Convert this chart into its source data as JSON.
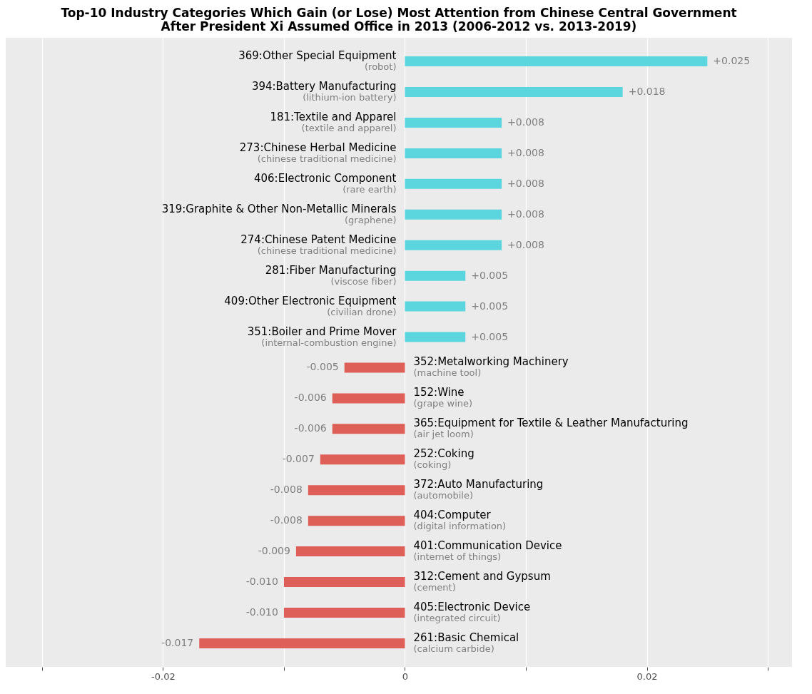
{
  "chart_data": {
    "type": "bar",
    "orientation": "horizontal",
    "title": "Top-10 Industry Categories Which Gain (or Lose) Most Attention from Chinese Central Government\nAfter President Xi Assumed Office in 2013 (2006-2012 vs. 2013-2019)",
    "categories": [
      "369:Other Special Equipment",
      "394:Battery Manufacturing",
      "181:Textile and Apparel",
      "273:Chinese Herbal Medicine",
      "406:Electronic Component",
      "319:Graphite & Other Non-Metallic Minerals",
      "274:Chinese Patent Medicine",
      "281:Fiber Manufacturing",
      "409:Other Electronic Equipment",
      "351:Boiler and Prime Mover",
      "352:Metalworking Machinery",
      "152:Wine",
      "365:Equipment for Textile & Leather Manufacturing",
      "252:Coking",
      "372:Auto Manufacturing",
      "404:Computer",
      "401:Communication Device",
      "312:Cement and Gypsum",
      "405:Electronic Device",
      "261:Basic Chemical"
    ],
    "values": [
      0.025,
      0.018,
      0.008,
      0.008,
      0.008,
      0.008,
      0.008,
      0.005,
      0.005,
      0.005,
      -0.005,
      -0.006,
      -0.006,
      -0.007,
      -0.008,
      -0.008,
      -0.009,
      -0.01,
      -0.01,
      -0.017
    ],
    "value_labels": [
      "+0.025",
      "+0.018",
      "+0.008",
      "+0.008",
      "+0.008",
      "+0.008",
      "+0.008",
      "+0.005",
      "+0.005",
      "+0.005",
      "-0.005",
      "-0.006",
      "-0.006",
      "-0.007",
      "-0.008",
      "-0.008",
      "-0.009",
      "-0.010",
      "-0.010",
      "-0.017"
    ],
    "colors": [
      "#5bd5de",
      "#5bd5de",
      "#5bd5de",
      "#5bd5de",
      "#5bd5de",
      "#5bd5de",
      "#5bd5de",
      "#5bd5de",
      "#5bd5de",
      "#5bd5de",
      "#de5f57",
      "#de5f57",
      "#de5f57",
      "#de5f57",
      "#de5f57",
      "#de5f57",
      "#de5f57",
      "#de5f57",
      "#de5f57",
      "#de5f57"
    ],
    "annotations": [
      "(robot)",
      "(lithium-ion battery)",
      "(textile and apparel)",
      "(chinese traditional medicine)",
      "(rare earth)",
      "(graphene)",
      "(chinese traditional medicine)",
      "(viscose fiber)",
      "(civilian drone)",
      "(internal-combustion engine)",
      "(machine tool)",
      "(grape wine)",
      "(air jet loom)",
      "(coking)",
      "(automobile)",
      "(digital information)",
      "(internet of things)",
      "(cement)",
      "(integrated circuit)",
      "(calcium carbide)"
    ],
    "xlim": [
      -0.033,
      0.032
    ],
    "xticks": [
      {
        "value": -0.03,
        "label": null
      },
      -0.02,
      {
        "value": -0.01,
        "label": null
      },
      0,
      {
        "value": 0.01,
        "label": null
      },
      0.02,
      {
        "value": 0.03,
        "label": null
      }
    ],
    "grid": "x",
    "tick_labels": "x"
  }
}
